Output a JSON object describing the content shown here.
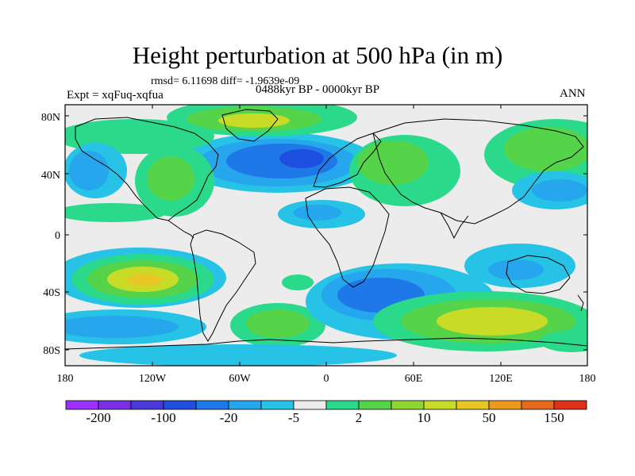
{
  "title": "Height perturbation at 500 hPa (in m)",
  "stats_text": "rmsd= 6.11698 diff= -1.9639e-09",
  "experiment_label": "Expt = xqFuq-xqfua",
  "period_label": "0488kyr BP - 0000kyr BP",
  "season_label": "ANN",
  "lat_ticks": [
    "80N",
    "40N",
    "0",
    "40S",
    "80S"
  ],
  "lon_ticks": [
    "180",
    "120W",
    "60W",
    "0",
    "60E",
    "120E",
    "180"
  ],
  "colorbar": {
    "labels": [
      "-200",
      "-100",
      "-20",
      "-5",
      "2",
      "10",
      "50",
      "150"
    ],
    "colors": [
      "#9b30ff",
      "#7a2ee6",
      "#4b38d8",
      "#1f4fe0",
      "#1e78e8",
      "#26a6ec",
      "#27c3e6",
      "#ececec",
      "#2ad98a",
      "#55d44a",
      "#8fd632",
      "#c8db27",
      "#e8c623",
      "#ea9a20",
      "#e66a1e",
      "#e0301a"
    ]
  },
  "colors": {
    "neutral": "#ececec",
    "blue_light": "#27c3e6",
    "blue_mid": "#26a6ec",
    "blue_deep": "#1e78e8",
    "blue_core": "#1f4fe0",
    "green_mint": "#2ad98a",
    "green": "#55d44a",
    "yellow_green": "#c8db27",
    "orange": "#e8c623",
    "orange_core": "#ea9a20"
  }
}
